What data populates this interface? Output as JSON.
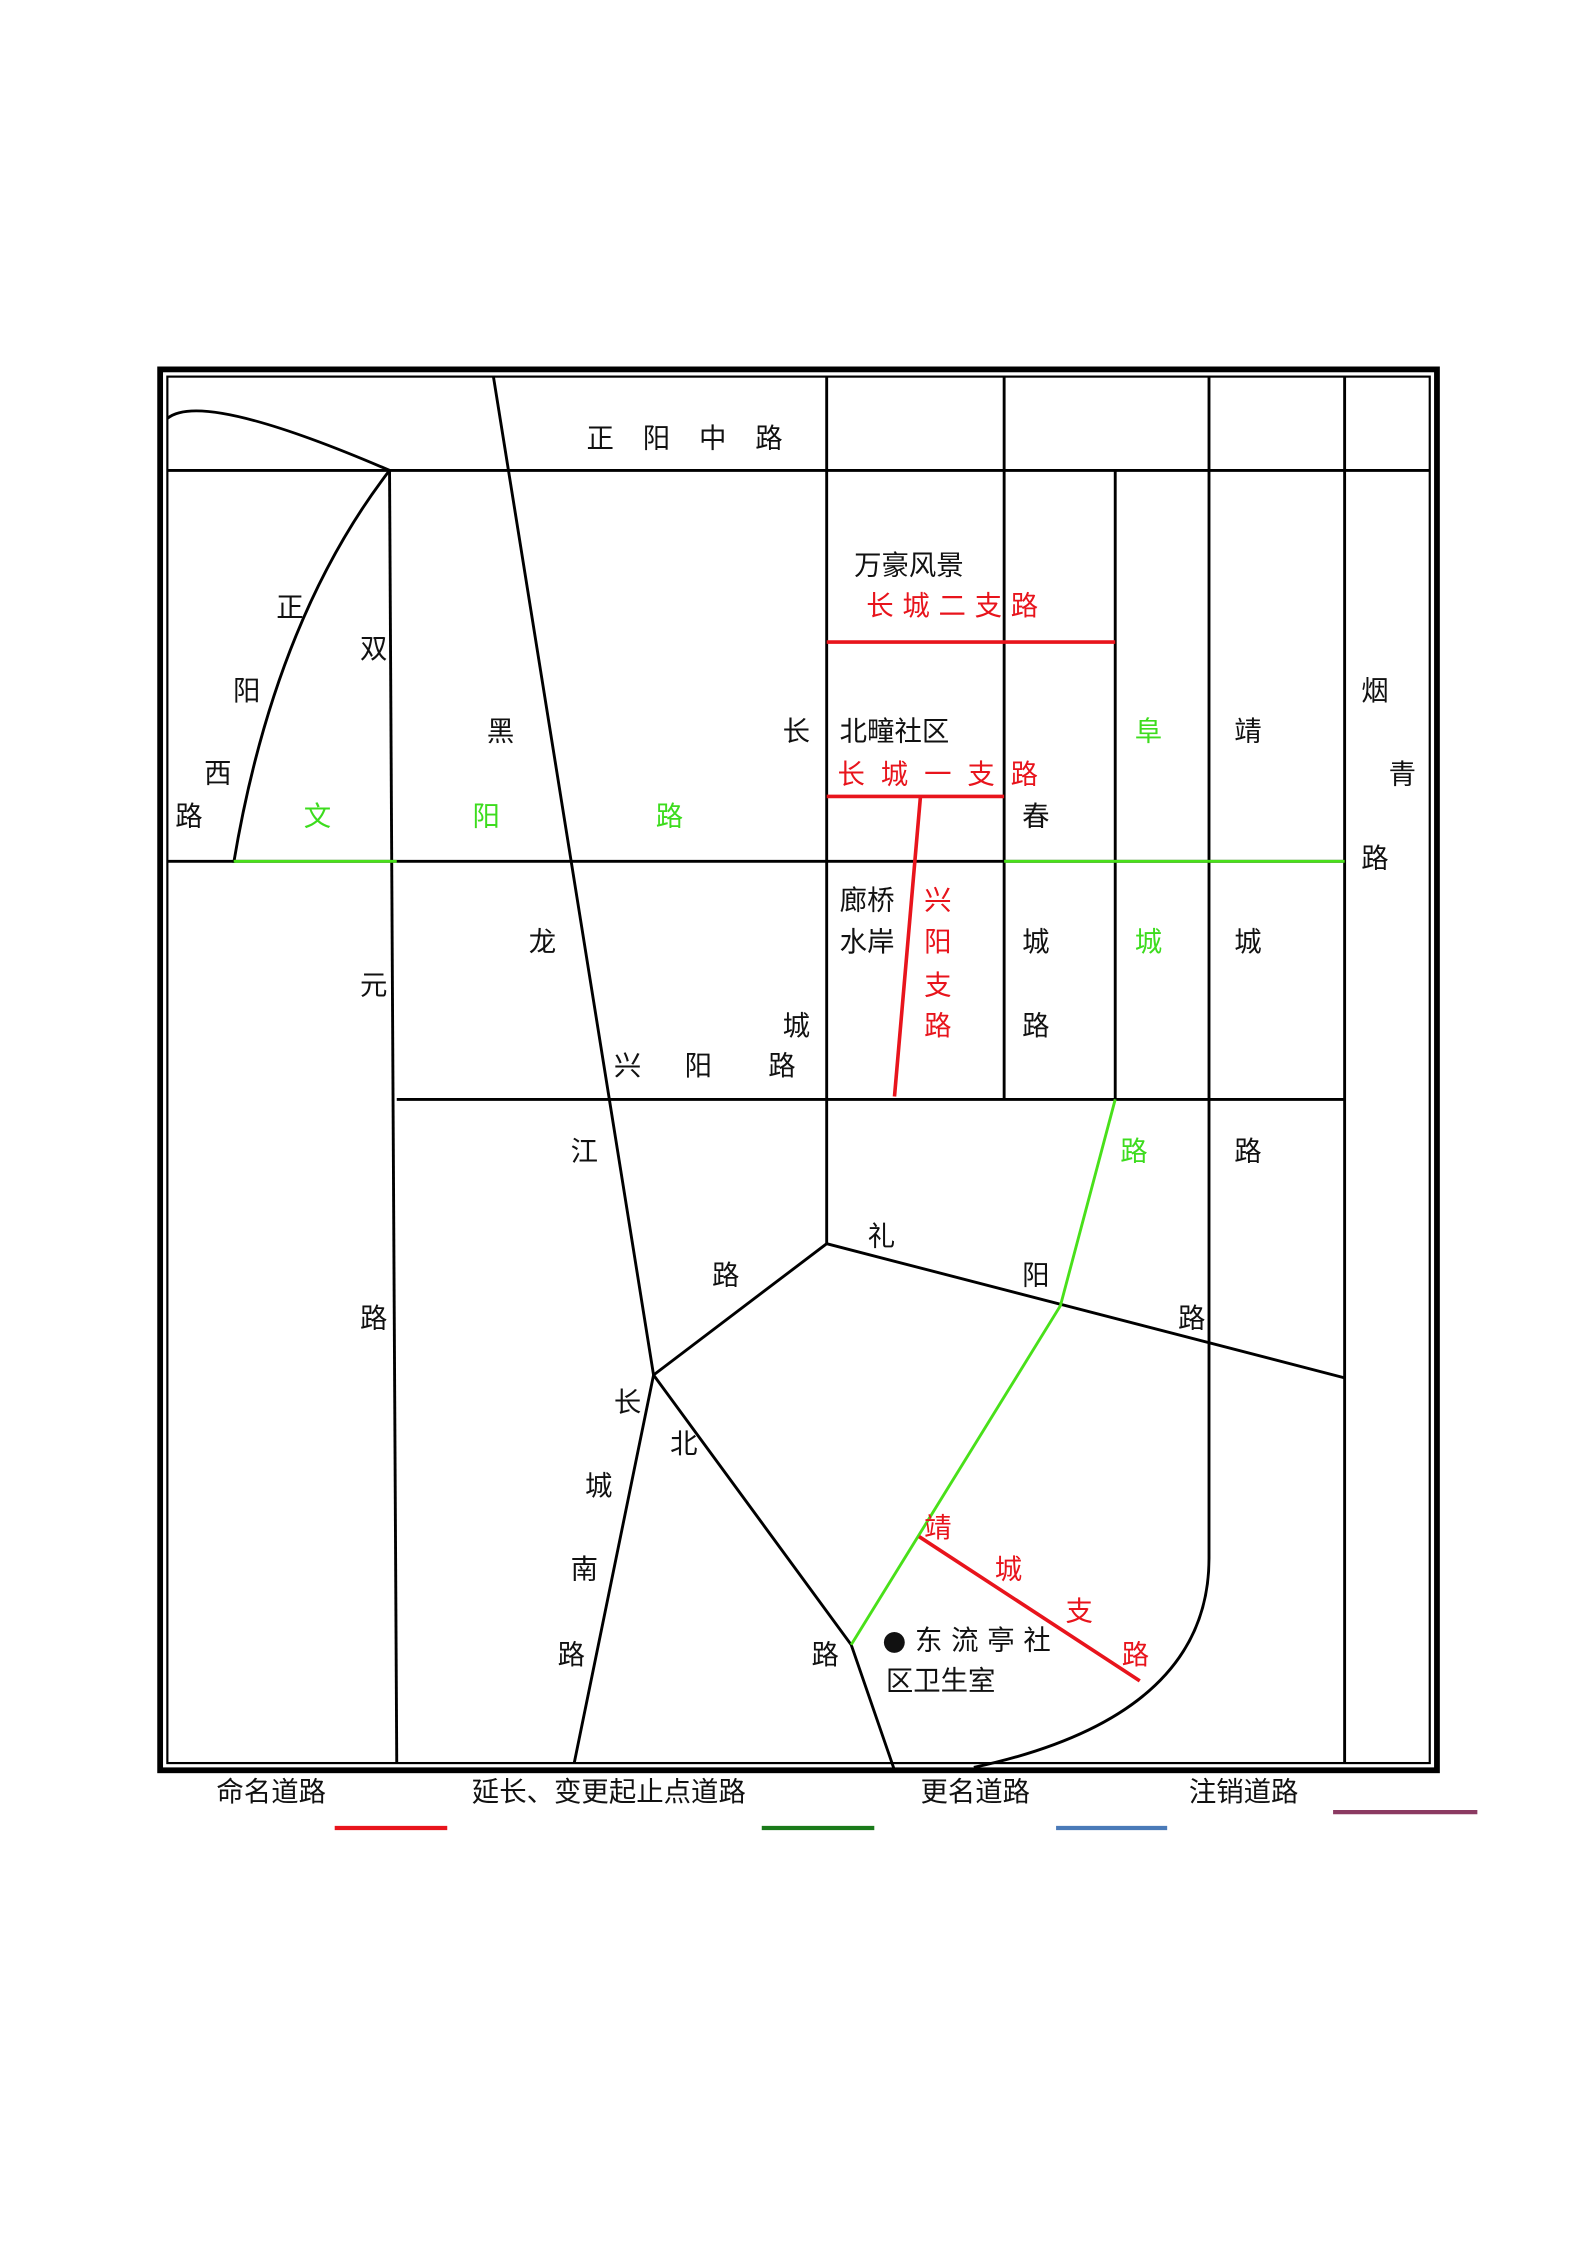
{
  "map": {
    "zhengyang_zhong": [
      "正",
      "阳",
      "中",
      "路"
    ],
    "zhengyang_xi": [
      "正",
      "阳",
      "西",
      "路"
    ],
    "shuangyuan": [
      "双",
      "元",
      "路"
    ],
    "wenyang": [
      "文",
      "阳",
      "路"
    ],
    "heilongjiang": [
      "黑",
      "龙",
      "江",
      "路"
    ],
    "changcheng": [
      "长",
      "城"
    ],
    "xingyang": [
      "兴",
      "阳",
      "路"
    ],
    "wanhao": "万豪风景",
    "cc_er": "长 城 二 支 路",
    "beituan": "北疃社区",
    "cc_yi": [
      "长",
      "城",
      "一",
      "支",
      "路"
    ],
    "langqiao": [
      "廊桥",
      "水岸"
    ],
    "xingyang_zhi": [
      "兴",
      "阳",
      "支",
      "路"
    ],
    "chuncheng": [
      "春",
      "城",
      "路"
    ],
    "fucheng": [
      "阜",
      "城",
      "路"
    ],
    "jingcheng": [
      "靖",
      "城",
      "路"
    ],
    "yanqing": [
      "烟",
      "青",
      "路"
    ],
    "liyang": [
      "礼",
      "阳",
      "路"
    ],
    "changcheng_nan": [
      "长",
      "城",
      "南",
      "路"
    ],
    "changbei": [
      "北",
      "路"
    ],
    "jingcheng_zhi": [
      "靖",
      "城",
      "支",
      "路"
    ],
    "clinic": [
      "● 东 流 亭 社",
      "区卫生室"
    ]
  },
  "legend": [
    {
      "name": "命名道路",
      "color": "#e8141c"
    },
    {
      "name": "延长、变更起止点道路",
      "color": "#1a7a1a"
    },
    {
      "name": "更名道路",
      "color": "#4a7ab8"
    },
    {
      "name": "注销道路",
      "color": "#8b3a62"
    }
  ]
}
